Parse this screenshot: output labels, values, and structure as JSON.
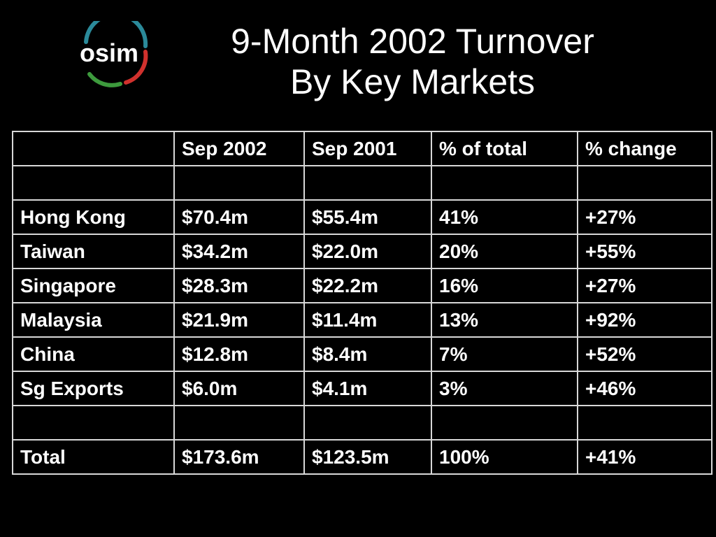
{
  "logo": {
    "text": "osim"
  },
  "title": {
    "line1": "9-Month 2002 Turnover",
    "line2": "By Key Markets"
  },
  "colors": {
    "background": "#000000",
    "text": "#ffffff",
    "grid": "#d8d8d8",
    "logo_teal": "#2b8a9a",
    "logo_red": "#d0312d",
    "logo_green": "#3d9a3d"
  },
  "table": {
    "headers": [
      "",
      "Sep 2002",
      "Sep 2001",
      "% of total",
      "% change"
    ],
    "rows": [
      [
        "",
        "",
        "",
        "",
        ""
      ],
      [
        "Hong Kong",
        "$70.4m",
        "$55.4m",
        "41%",
        "+27%"
      ],
      [
        "Taiwan",
        "$34.2m",
        "$22.0m",
        "20%",
        "+55%"
      ],
      [
        "Singapore",
        "$28.3m",
        "$22.2m",
        "16%",
        "+27%"
      ],
      [
        "Malaysia",
        "$21.9m",
        "$11.4m",
        "13%",
        "+92%"
      ],
      [
        "China",
        "$12.8m",
        "$8.4m",
        "7%",
        "+52%"
      ],
      [
        "Sg Exports",
        "$6.0m",
        "$4.1m",
        "3%",
        "+46%"
      ],
      [
        "",
        "",
        "",
        "",
        ""
      ],
      [
        "Total",
        "$173.6m",
        "$123.5m",
        "100%",
        "+41%"
      ]
    ]
  }
}
